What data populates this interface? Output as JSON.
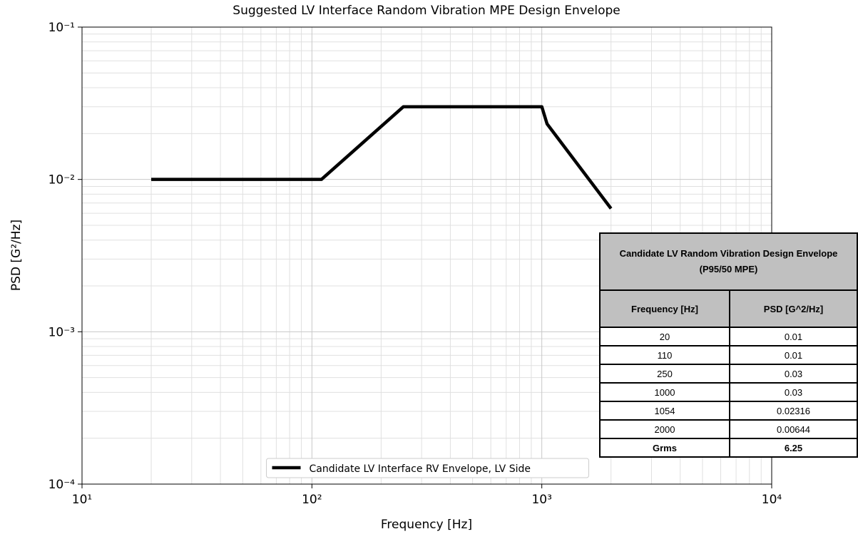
{
  "chart_data": {
    "type": "line",
    "title": "Suggested LV Interface Random Vibration MPE Design Envelope",
    "xlabel": "Frequency [Hz]",
    "ylabel": "PSD [G²/Hz]",
    "x": [
      20,
      110,
      250,
      1000,
      1054,
      2000
    ],
    "series": [
      {
        "name": "Candidate LV Interface RV Envelope, LV Side",
        "color": "#000000",
        "values": [
          0.01,
          0.01,
          0.03,
          0.03,
          0.02316,
          0.00644
        ]
      }
    ],
    "xlim": [
      10,
      10000
    ],
    "ylim": [
      0.0001,
      0.1
    ],
    "xticks": [
      {
        "value": 10,
        "label": "10¹"
      },
      {
        "value": 100,
        "label": "10²"
      },
      {
        "value": 1000,
        "label": "10³"
      },
      {
        "value": 10000,
        "label": "10⁴"
      }
    ],
    "yticks": [
      {
        "value": 0.0001,
        "label": "10⁻⁴"
      },
      {
        "value": 0.001,
        "label": "10⁻³"
      },
      {
        "value": 0.01,
        "label": "10⁻²"
      },
      {
        "value": 0.1,
        "label": "10⁻¹"
      }
    ],
    "xscale": "log",
    "yscale": "log",
    "grid": true,
    "minor_grid": true,
    "legend": "lower center"
  },
  "table": {
    "title": "Candidate LV Random Vibration Design Envelope (P95/50 MPE)",
    "header": [
      "Frequency [Hz]",
      "PSD [G^2/Hz]"
    ],
    "rows": [
      [
        "20",
        "0.01"
      ],
      [
        "110",
        "0.01"
      ],
      [
        "250",
        "0.03"
      ],
      [
        "1000",
        "0.03"
      ],
      [
        "1054",
        "0.02316"
      ],
      [
        "2000",
        "0.00644"
      ]
    ],
    "footer": [
      "Grms",
      "6.25"
    ]
  }
}
